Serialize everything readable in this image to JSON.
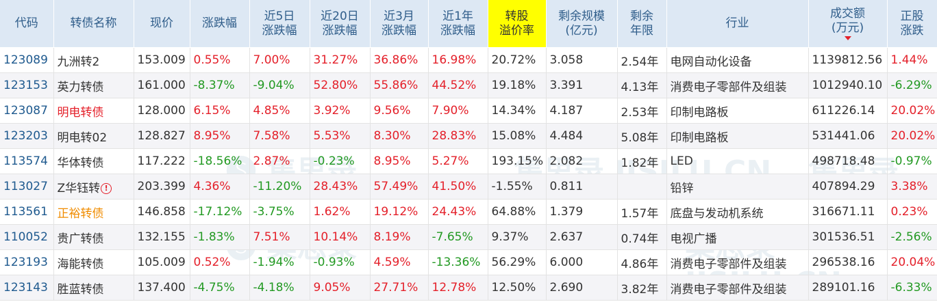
{
  "headers": [
    {
      "l1": "代码",
      "l2": ""
    },
    {
      "l1": "转债名称",
      "l2": ""
    },
    {
      "l1": "现价",
      "l2": ""
    },
    {
      "l1": "涨跌幅",
      "l2": ""
    },
    {
      "l1": "近5日",
      "l2": "涨跌幅"
    },
    {
      "l1": "近20日",
      "l2": "涨跌幅"
    },
    {
      "l1": "近3月",
      "l2": "涨跌幅"
    },
    {
      "l1": "近1年",
      "l2": "涨跌幅"
    },
    {
      "l1": "转股",
      "l2": "溢价率"
    },
    {
      "l1": "剩余规模",
      "l2": "(亿元)"
    },
    {
      "l1": "剩余",
      "l2": "年限"
    },
    {
      "l1": "行业",
      "l2": ""
    },
    {
      "l1": "成交额",
      "l2": "(万元)"
    },
    {
      "l1": "正股",
      "l2": "涨跌"
    }
  ],
  "colors": {
    "up": "#e4202a",
    "down": "#229922",
    "header_bg": "#dde8f4",
    "highlight_header": "#ffff00",
    "code": "#1f5a8f"
  },
  "sort": {
    "column": "成交额",
    "direction": "desc"
  },
  "rows": [
    {
      "code": "123089",
      "name": "九洲转2",
      "name_style": "normal",
      "price": "153.009",
      "chg": "0.55%",
      "chg5": "7.00%",
      "chg20": "31.27%",
      "chg3m": "36.86%",
      "chg1y": "16.98%",
      "premium": "20.72%",
      "scale": "3.058",
      "years": "2.54年",
      "industry": "电网自动化设备",
      "volume": "1139812.56",
      "stock_chg": "1.44%"
    },
    {
      "code": "123153",
      "name": "英力转债",
      "name_style": "normal",
      "price": "161.000",
      "chg": "-8.37%",
      "chg5": "-9.04%",
      "chg20": "52.80%",
      "chg3m": "55.86%",
      "chg1y": "44.52%",
      "premium": "19.18%",
      "scale": "3.391",
      "years": "4.13年",
      "industry": "消费电子零部件及组装",
      "volume": "1012940.10",
      "stock_chg": "-6.29%"
    },
    {
      "code": "123087",
      "name": "明电转债",
      "name_style": "red",
      "price": "128.000",
      "chg": "6.15%",
      "chg5": "4.85%",
      "chg20": "3.92%",
      "chg3m": "9.56%",
      "chg1y": "7.90%",
      "premium": "14.34%",
      "scale": "4.187",
      "years": "2.53年",
      "industry": "印制电路板",
      "volume": "611226.14",
      "stock_chg": "20.02%"
    },
    {
      "code": "123203",
      "name": "明电转02",
      "name_style": "normal",
      "price": "128.827",
      "chg": "8.95%",
      "chg5": "7.58%",
      "chg20": "5.53%",
      "chg3m": "8.30%",
      "chg1y": "28.83%",
      "premium": "15.08%",
      "scale": "4.484",
      "years": "5.08年",
      "industry": "印制电路板",
      "volume": "531441.06",
      "stock_chg": "20.02%"
    },
    {
      "code": "113574",
      "name": "华体转债",
      "name_style": "normal",
      "price": "117.222",
      "chg": "-18.56%",
      "chg5": "2.87%",
      "chg20": "-0.23%",
      "chg3m": "8.95%",
      "chg1y": "5.27%",
      "premium": "193.15%",
      "scale": "2.082",
      "years": "1.82年",
      "industry": "LED",
      "volume": "498718.48",
      "stock_chg": "-0.97%"
    },
    {
      "code": "113027",
      "name": "Z华钰转",
      "name_style": "normal",
      "warn": "!",
      "price": "203.399",
      "chg": "4.36%",
      "chg5": "-11.20%",
      "chg20": "28.43%",
      "chg3m": "57.49%",
      "chg1y": "41.50%",
      "premium": "-1.55%",
      "scale": "0.811",
      "years": "",
      "industry": "铅锌",
      "volume": "407894.29",
      "stock_chg": "3.38%"
    },
    {
      "code": "113561",
      "name": "正裕转债",
      "name_style": "orange",
      "price": "146.858",
      "chg": "-17.12%",
      "chg5": "-3.75%",
      "chg20": "1.62%",
      "chg3m": "19.12%",
      "chg1y": "24.43%",
      "premium": "64.88%",
      "scale": "1.379",
      "years": "1.57年",
      "industry": "底盘与发动机系统",
      "volume": "316671.11",
      "stock_chg": "0.23%"
    },
    {
      "code": "110052",
      "name": "贵广转债",
      "name_style": "normal",
      "price": "132.155",
      "chg": "-1.83%",
      "chg5": "7.51%",
      "chg20": "10.14%",
      "chg3m": "8.19%",
      "chg1y": "-7.65%",
      "premium": "9.37%",
      "scale": "2.637",
      "years": "0.74年",
      "industry": "电视广播",
      "volume": "301536.51",
      "stock_chg": "-2.56%"
    },
    {
      "code": "123193",
      "name": "海能转债",
      "name_style": "normal",
      "price": "105.009",
      "chg": "0.52%",
      "chg5": "-1.94%",
      "chg20": "-0.93%",
      "chg3m": "4.59%",
      "chg1y": "-13.36%",
      "premium": "56.29%",
      "scale": "6.000",
      "years": "4.86年",
      "industry": "消费电子零部件及组装",
      "volume": "296538.16",
      "stock_chg": "20.04%"
    },
    {
      "code": "123143",
      "name": "胜蓝转债",
      "name_style": "normal",
      "price": "137.400",
      "chg": "-4.75%",
      "chg5": "-4.18%",
      "chg20": "9.05%",
      "chg3m": "27.71%",
      "chg1y": "12.78%",
      "premium": "12.50%",
      "scale": "2.690",
      "years": "3.82年",
      "industry": "消费电子零部件及组装",
      "volume": "289101.16",
      "stock_chg": "-6.33%"
    }
  ]
}
